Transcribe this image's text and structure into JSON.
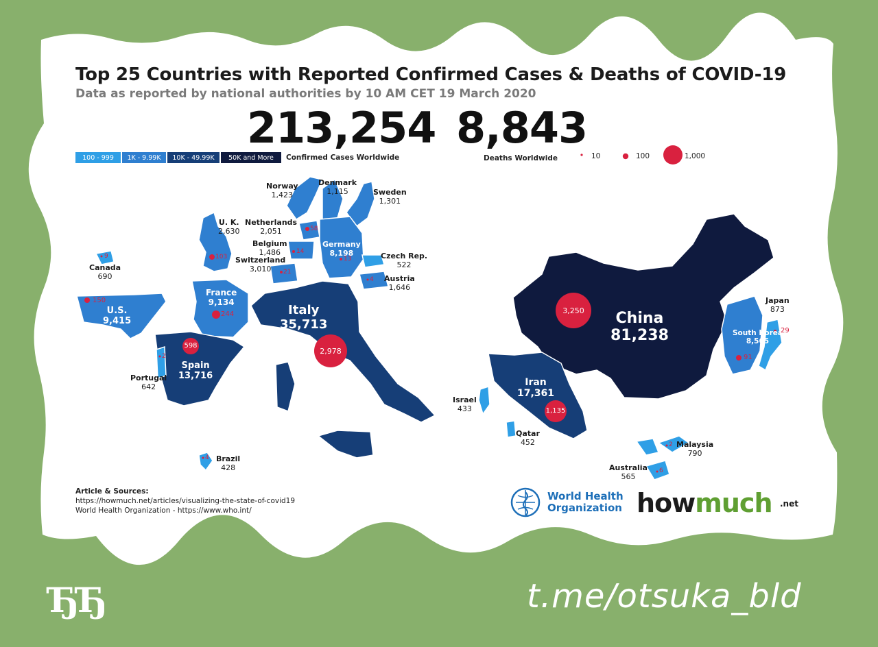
{
  "header": {
    "title": "Top 25 Countries with Reported Confirmed Cases & Deaths of COVID-19",
    "subtitle": "Data as reported by national authorities by 10 AM CET 19 March 2020"
  },
  "totals": {
    "confirmed_cases": "213,254",
    "confirmed_label": "Confirmed Cases Worldwide",
    "deaths": "8,843",
    "deaths_label": "Deaths Worldwide"
  },
  "legend": {
    "case_bins": [
      {
        "label": "100 - 999",
        "color": "#2f9fe6"
      },
      {
        "label": "1K - 9.99K",
        "color": "#2f7fd0"
      },
      {
        "label": "10K - 49.99K",
        "color": "#163e77"
      },
      {
        "label": "50K and More",
        "color": "#0f1a3e"
      }
    ],
    "death_sizes": [
      {
        "label": "10",
        "value": 10
      },
      {
        "label": "100",
        "value": 100
      },
      {
        "label": "1,000",
        "value": 1000
      }
    ],
    "death_color": "#d9213f"
  },
  "countries": [
    {
      "name": "Norway",
      "cases": "1,423",
      "deaths": ""
    },
    {
      "name": "Denmark",
      "cases": "1,115",
      "deaths": ""
    },
    {
      "name": "Sweden",
      "cases": "1,301",
      "deaths": ""
    },
    {
      "name": "U. K.",
      "cases": "2,630",
      "deaths": "103"
    },
    {
      "name": "Netherlands",
      "cases": "2,051",
      "deaths": "58"
    },
    {
      "name": "Belgium",
      "cases": "1,486",
      "deaths": "14"
    },
    {
      "name": "Switzerland",
      "cases": "3,010",
      "deaths": "21"
    },
    {
      "name": "Germany",
      "cases": "8,198",
      "deaths": "13"
    },
    {
      "name": "Czech Rep.",
      "cases": "522",
      "deaths": ""
    },
    {
      "name": "Austria",
      "cases": "1,646",
      "deaths": "4"
    },
    {
      "name": "Canada",
      "cases": "690",
      "deaths": "9"
    },
    {
      "name": "U.S.",
      "cases": "9,415",
      "deaths": "150"
    },
    {
      "name": "France",
      "cases": "9,134",
      "deaths": "244"
    },
    {
      "name": "Italy",
      "cases": "35,713",
      "deaths": "2,978"
    },
    {
      "name": "Spain",
      "cases": "13,716",
      "deaths": "598"
    },
    {
      "name": "Portugal",
      "cases": "642",
      "deaths": "2"
    },
    {
      "name": "Brazil",
      "cases": "428",
      "deaths": "4"
    },
    {
      "name": "China",
      "cases": "81,238",
      "deaths": "3,250"
    },
    {
      "name": "Japan",
      "cases": "873",
      "deaths": "29"
    },
    {
      "name": "South Korea",
      "cases": "8,565",
      "deaths": "91"
    },
    {
      "name": "Iran",
      "cases": "17,361",
      "deaths": "1,135"
    },
    {
      "name": "Israel",
      "cases": "433",
      "deaths": ""
    },
    {
      "name": "Qatar",
      "cases": "452",
      "deaths": ""
    },
    {
      "name": "Malaysia",
      "cases": "790",
      "deaths": "2"
    },
    {
      "name": "Australia",
      "cases": "565",
      "deaths": "6"
    }
  ],
  "sources": {
    "heading": "Article & Sources:",
    "line1": "https://howmuch.net/articles/visualizing-the-state-of-covid19",
    "line2": "World Health Organization - https://www.who.int/"
  },
  "logos": {
    "who_line1": "World Health",
    "who_line2": "Organization",
    "howmuch_a": "how",
    "howmuch_b": "much",
    "howmuch_net": ".net"
  },
  "footer": {
    "logo_text": "ЂЂ",
    "channel": "t.me/otsuka_bld"
  }
}
